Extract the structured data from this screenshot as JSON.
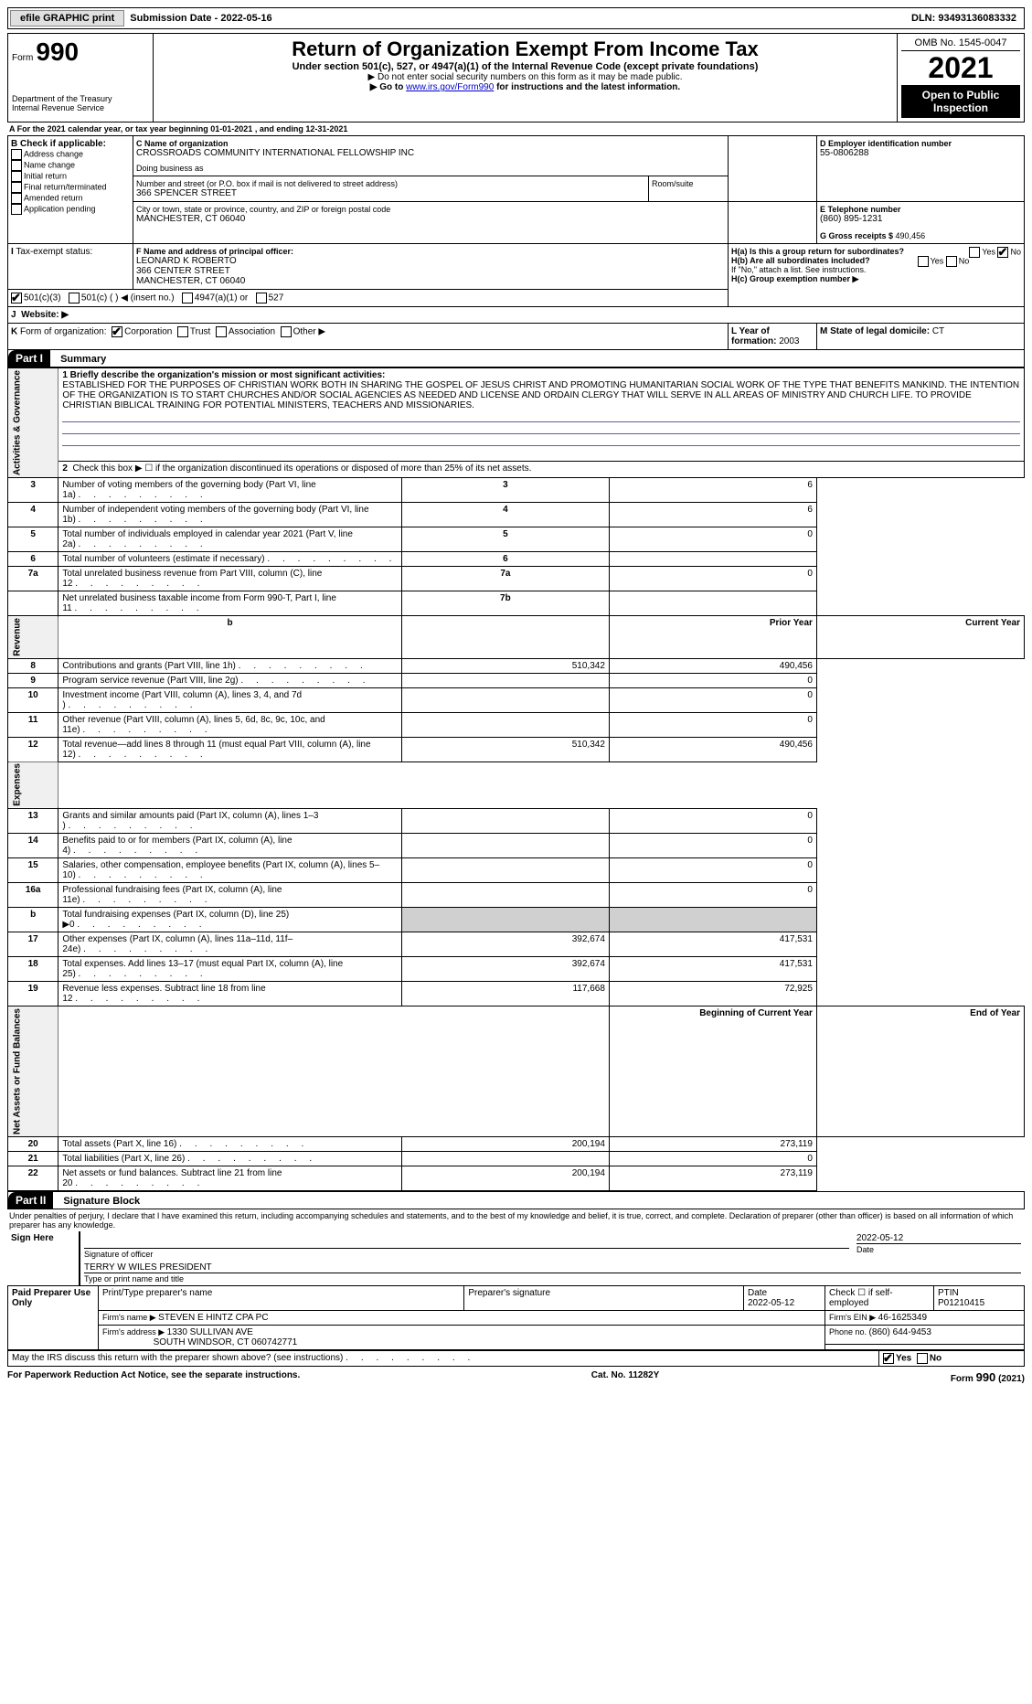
{
  "topbar": {
    "efile": "efile GRAPHIC print",
    "submission_label": "Submission Date - ",
    "submission_date": "2022-05-16",
    "dln_label": "DLN: ",
    "dln": "93493136083332"
  },
  "header": {
    "form_prefix": "Form",
    "form_num": "990",
    "dept": "Department of the Treasury\nInternal Revenue Service",
    "title": "Return of Organization Exempt From Income Tax",
    "sub1": "Under section 501(c), 527, or 4947(a)(1) of the Internal Revenue Code (except private foundations)",
    "sub2": "▶ Do not enter social security numbers on this form as it may be made public.",
    "sub3_pre": "▶ Go to ",
    "sub3_link": "www.irs.gov/Form990",
    "sub3_post": " for instructions and the latest information.",
    "omb": "OMB No. 1545-0047",
    "year": "2021",
    "open": "Open to Public Inspection"
  },
  "A": {
    "text": "For the 2021 calendar year, or tax year beginning ",
    "begin": "01-01-2021",
    "mid": " , and ending ",
    "end": "12-31-2021"
  },
  "B": {
    "label": "B Check if applicable:",
    "opts": [
      "Address change",
      "Name change",
      "Initial return",
      "Final return/terminated",
      "Amended return",
      "Application pending"
    ]
  },
  "C": {
    "name_label": "C Name of organization",
    "name": "CROSSROADS COMMUNITY INTERNATIONAL FELLOWSHIP INC",
    "dba_label": "Doing business as",
    "street_label": "Number and street (or P.O. box if mail is not delivered to street address)",
    "street": "366 SPENCER STREET",
    "room_label": "Room/suite",
    "city_label": "City or town, state or province, country, and ZIP or foreign postal code",
    "city": "MANCHESTER, CT  06040"
  },
  "D": {
    "label": "D Employer identification number",
    "val": "55-0806288"
  },
  "E": {
    "label": "E Telephone number",
    "val": "(860) 895-1231"
  },
  "G": {
    "label": "G Gross receipts $ ",
    "val": "490,456"
  },
  "F": {
    "label": "F  Name and address of principal officer:",
    "name": "LEONARD K ROBERTO",
    "street": "366 CENTER STREET",
    "city": "MANCHESTER, CT  06040"
  },
  "H": {
    "a": "H(a)  Is this a group return for subordinates?",
    "b": "H(b)  Are all subordinates included?",
    "b_note": "If \"No,\" attach a list. See instructions.",
    "c": "H(c)  Group exemption number ▶",
    "yes": "Yes",
    "no": "No"
  },
  "I": {
    "label": "Tax-exempt status:",
    "opts": [
      "501(c)(3)",
      "501(c) (  ) ◀ (insert no.)",
      "4947(a)(1) or",
      "527"
    ]
  },
  "J": {
    "label": "Website: ▶"
  },
  "K": {
    "label": "Form of organization:",
    "opts": [
      "Corporation",
      "Trust",
      "Association",
      "Other ▶"
    ]
  },
  "L": {
    "label": "L Year of formation: ",
    "val": "2003"
  },
  "M": {
    "label": "M State of legal domicile: ",
    "val": "CT"
  },
  "partI": {
    "tab": "Part I",
    "title": "Summary",
    "l1_label": "1  Briefly describe the organization's mission or most significant activities:",
    "l1": "ESTABLISHED FOR THE PURPOSES OF CHRISTIAN WORK BOTH IN SHARING THE GOSPEL OF JESUS CHRIST AND PROMOTING HUMANITARIAN SOCIAL WORK OF THE TYPE THAT BENEFITS MANKIND. THE INTENTION OF THE ORGANIZATION IS TO START CHURCHES AND/OR SOCIAL AGENCIES AS NEEDED AND LICENSE AND ORDAIN CLERGY THAT WILL SERVE IN ALL AREAS OF MINISTRY AND CHURCH LIFE. TO PROVIDE CHRISTIAN BIBLICAL TRAINING FOR POTENTIAL MINISTERS, TEACHERS AND MISSIONARIES.",
    "l2": "Check this box ▶ ☐  if the organization discontinued its operations or disposed of more than 25% of its net assets.",
    "rows_gov": [
      {
        "n": "3",
        "t": "Number of voting members of the governing body (Part VI, line 1a)",
        "r": "3",
        "v": "6"
      },
      {
        "n": "4",
        "t": "Number of independent voting members of the governing body (Part VI, line 1b)",
        "r": "4",
        "v": "6"
      },
      {
        "n": "5",
        "t": "Total number of individuals employed in calendar year 2021 (Part V, line 2a)",
        "r": "5",
        "v": "0"
      },
      {
        "n": "6",
        "t": "Total number of volunteers (estimate if necessary)",
        "r": "6",
        "v": ""
      },
      {
        "n": "7a",
        "t": "Total unrelated business revenue from Part VIII, column (C), line 12",
        "r": "7a",
        "v": "0"
      },
      {
        "n": "",
        "t": "Net unrelated business taxable income from Form 990-T, Part I, line 11",
        "r": "7b",
        "v": ""
      }
    ],
    "pycol": "Prior Year",
    "cycol": "Current Year",
    "rows_rev": [
      {
        "n": "8",
        "t": "Contributions and grants (Part VIII, line 1h)",
        "py": "510,342",
        "cy": "490,456"
      },
      {
        "n": "9",
        "t": "Program service revenue (Part VIII, line 2g)",
        "py": "",
        "cy": "0"
      },
      {
        "n": "10",
        "t": "Investment income (Part VIII, column (A), lines 3, 4, and 7d )",
        "py": "",
        "cy": "0"
      },
      {
        "n": "11",
        "t": "Other revenue (Part VIII, column (A), lines 5, 6d, 8c, 9c, 10c, and 11e)",
        "py": "",
        "cy": "0"
      },
      {
        "n": "12",
        "t": "Total revenue—add lines 8 through 11 (must equal Part VIII, column (A), line 12)",
        "py": "510,342",
        "cy": "490,456"
      }
    ],
    "rows_exp": [
      {
        "n": "13",
        "t": "Grants and similar amounts paid (Part IX, column (A), lines 1–3 )",
        "py": "",
        "cy": "0"
      },
      {
        "n": "14",
        "t": "Benefits paid to or for members (Part IX, column (A), line 4)",
        "py": "",
        "cy": "0"
      },
      {
        "n": "15",
        "t": "Salaries, other compensation, employee benefits (Part IX, column (A), lines 5–10)",
        "py": "",
        "cy": "0"
      },
      {
        "n": "16a",
        "t": "Professional fundraising fees (Part IX, column (A), line 11e)",
        "py": "",
        "cy": "0"
      },
      {
        "n": "b",
        "t": "Total fundraising expenses (Part IX, column (D), line 25) ▶0",
        "py": "GRAY",
        "cy": "GRAY"
      },
      {
        "n": "17",
        "t": "Other expenses (Part IX, column (A), lines 11a–11d, 11f–24e)",
        "py": "392,674",
        "cy": "417,531"
      },
      {
        "n": "18",
        "t": "Total expenses. Add lines 13–17 (must equal Part IX, column (A), line 25)",
        "py": "392,674",
        "cy": "417,531"
      },
      {
        "n": "19",
        "t": "Revenue less expenses. Subtract line 18 from line 12",
        "py": "117,668",
        "cy": "72,925"
      }
    ],
    "bcol": "Beginning of Current Year",
    "ecol": "End of Year",
    "rows_net": [
      {
        "n": "20",
        "t": "Total assets (Part X, line 16)",
        "py": "200,194",
        "cy": "273,119"
      },
      {
        "n": "21",
        "t": "Total liabilities (Part X, line 26)",
        "py": "",
        "cy": "0"
      },
      {
        "n": "22",
        "t": "Net assets or fund balances. Subtract line 21 from line 20",
        "py": "200,194",
        "cy": "273,119"
      }
    ],
    "vlabels": {
      "gov": "Activities & Governance",
      "rev": "Revenue",
      "exp": "Expenses",
      "net": "Net Assets or Fund Balances"
    }
  },
  "partII": {
    "tab": "Part II",
    "title": "Signature Block",
    "decl": "Under penalties of perjury, I declare that I have examined this return, including accompanying schedules and statements, and to the best of my knowledge and belief, it is true, correct, and complete. Declaration of preparer (other than officer) is based on all information of which preparer has any knowledge.",
    "sign_here": "Sign Here",
    "sig_officer": "Signature of officer",
    "date": "Date",
    "sig_date": "2022-05-12",
    "officer_name": "TERRY W WILES  PRESIDENT",
    "type_name": "Type or print name and title",
    "paid": "Paid Preparer Use Only",
    "prep_name_h": "Print/Type preparer's name",
    "prep_sig_h": "Preparer's signature",
    "prep_date_h": "Date",
    "prep_date": "2022-05-12",
    "check_self": "Check ☐ if self-employed",
    "ptin_h": "PTIN",
    "ptin": "P01210415",
    "firm_name_l": "Firm's name    ▶ ",
    "firm_name": "STEVEN E HINTZ CPA PC",
    "firm_ein_l": "Firm's EIN ▶ ",
    "firm_ein": "46-1625349",
    "firm_addr_l": "Firm's address ▶ ",
    "firm_addr1": "1330 SULLIVAN AVE",
    "firm_addr2": "SOUTH WINDSOR, CT  060742771",
    "phone_l": "Phone no. ",
    "phone": "(860) 644-9453",
    "may_irs": "May the IRS discuss this return with the preparer shown above? (see instructions)"
  },
  "footer": {
    "pra": "For Paperwork Reduction Act Notice, see the separate instructions.",
    "cat": "Cat. No. 11282Y",
    "form": "Form 990 (2021)"
  }
}
